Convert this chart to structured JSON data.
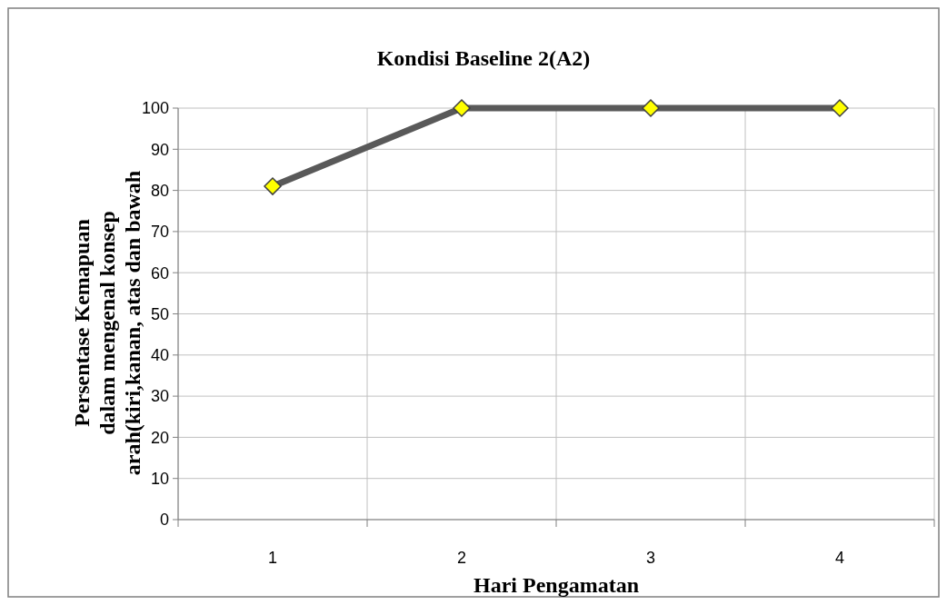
{
  "chart_data": {
    "type": "line",
    "title": "Kondisi Baseline 2(A2)",
    "xlabel": "Hari Pengamatan",
    "ylabel": "Persentase Kemapuan\ndalam mengenal konsep\narah(kiri,kanan, atas dan bawah",
    "categories": [
      "1",
      "2",
      "3",
      "4"
    ],
    "series": [
      {
        "color": "#595959",
        "values": [
          81,
          100,
          100,
          100
        ]
      }
    ],
    "ylim": [
      0,
      100
    ],
    "yticks": [
      0,
      10,
      20,
      30,
      40,
      50,
      60,
      70,
      80,
      90,
      100
    ],
    "grid": true,
    "marker": "diamond",
    "line_style": "solid"
  }
}
